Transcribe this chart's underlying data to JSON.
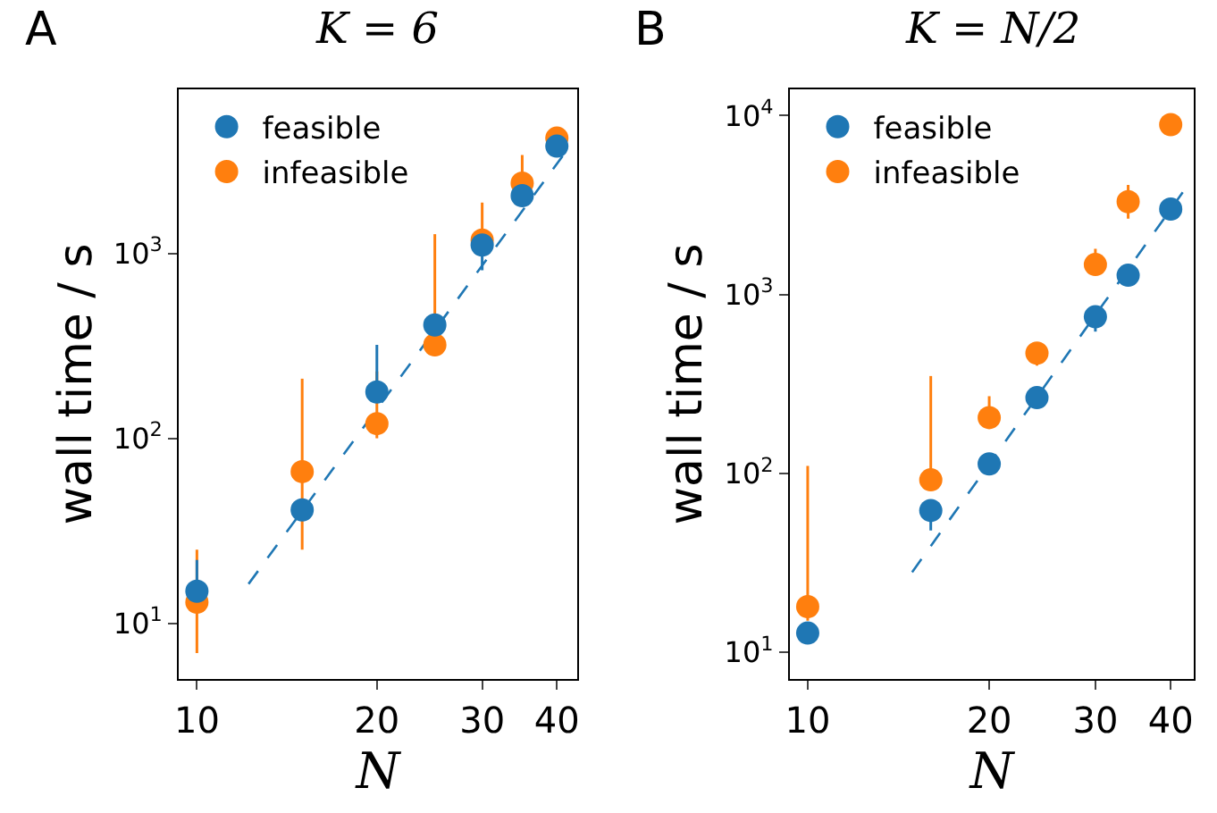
{
  "chart_data": [
    {
      "type": "scatter",
      "title": "K = 6",
      "xlabel": "N",
      "ylabel": "wall time / s",
      "log": "xy",
      "legend": "top left",
      "marker": "circle",
      "grid": false,
      "annotations": [
        "A"
      ],
      "xlim": [
        9.33,
        43.2
      ],
      "xticks": [
        10,
        20,
        30,
        40
      ],
      "ylim": [
        5,
        7700
      ],
      "yticks": [
        {
          "value": 10,
          "label": "10$^{1}$"
        },
        {
          "value": 100,
          "label": "10$^{2}$"
        },
        {
          "value": 1000,
          "label": "10$^{3}$"
        }
      ],
      "series": [
        {
          "name": "feasible",
          "color": "#1f77b4",
          "x": [
            10,
            15,
            20,
            25,
            30,
            35,
            40
          ],
          "values": [
            14.9,
            41,
            178,
            410,
            1110,
            2050,
            3800
          ],
          "errors": [
            [
              14.9,
              22
            ],
            null,
            [
              178,
              320
            ],
            null,
            [
              810,
              1110
            ],
            null,
            null
          ]
        },
        {
          "name": "infeasible",
          "color": "#ff7f0e",
          "x": [
            10,
            15,
            20,
            25,
            30,
            35,
            40
          ],
          "values": [
            13,
            66,
            120,
            320,
            1180,
            2400,
            4200
          ],
          "errors": [
            [
              6.9,
              25
            ],
            [
              25,
              210
            ],
            [
              100,
              230
            ],
            [
              320,
              1270
            ],
            [
              1180,
              1880
            ],
            [
              2400,
              3400
            ],
            [
              4200,
              4800
            ]
          ]
        },
        {
          "type": "line",
          "marker": "none",
          "line_style": "dashed",
          "color": "#1f77b4",
          "x": [
            12.2,
            42.3
          ],
          "values": [
            16.3,
            3900
          ]
        }
      ]
    },
    {
      "type": "scatter",
      "title": "K = N/2",
      "xlabel": "N",
      "ylabel": "wall time / s",
      "log": "xy",
      "legend": "top left",
      "marker": "circle",
      "grid": false,
      "annotations": [
        "B"
      ],
      "xlim": [
        9.34,
        43.7
      ],
      "xticks": [
        10,
        20,
        30,
        40
      ],
      "ylim": [
        7.1,
        14000
      ],
      "yticks": [
        {
          "value": 10,
          "label": "10$^{1}$"
        },
        {
          "value": 100,
          "label": "10$^{2}$"
        },
        {
          "value": 1000,
          "label": "10$^{3}$"
        },
        {
          "value": 10000,
          "label": "10$^{4}$"
        }
      ],
      "series": [
        {
          "name": "feasible",
          "color": "#1f77b4",
          "x": [
            10,
            16,
            20,
            24,
            30,
            34,
            40
          ],
          "values": [
            12.8,
            62,
            113,
            265,
            750,
            1280,
            3000
          ],
          "errors": [
            null,
            [
              48,
              62
            ],
            null,
            null,
            [
              620,
              750
            ],
            null,
            null
          ]
        },
        {
          "name": "infeasible",
          "color": "#ff7f0e",
          "x": [
            10,
            16,
            20,
            24,
            30,
            34,
            40
          ],
          "values": [
            18,
            92,
            205,
            470,
            1470,
            3300,
            8900
          ],
          "errors": [
            [
              15,
              110
            ],
            [
              92,
              350
            ],
            [
              205,
              270
            ],
            [
              400,
              540
            ],
            [
              1470,
              1800
            ],
            [
              2650,
              4100
            ],
            null
          ]
        },
        {
          "type": "line",
          "marker": "none",
          "line_style": "dashed",
          "color": "#1f77b4",
          "x": [
            14.9,
            42.3
          ],
          "values": [
            28,
            3900
          ]
        }
      ]
    }
  ]
}
